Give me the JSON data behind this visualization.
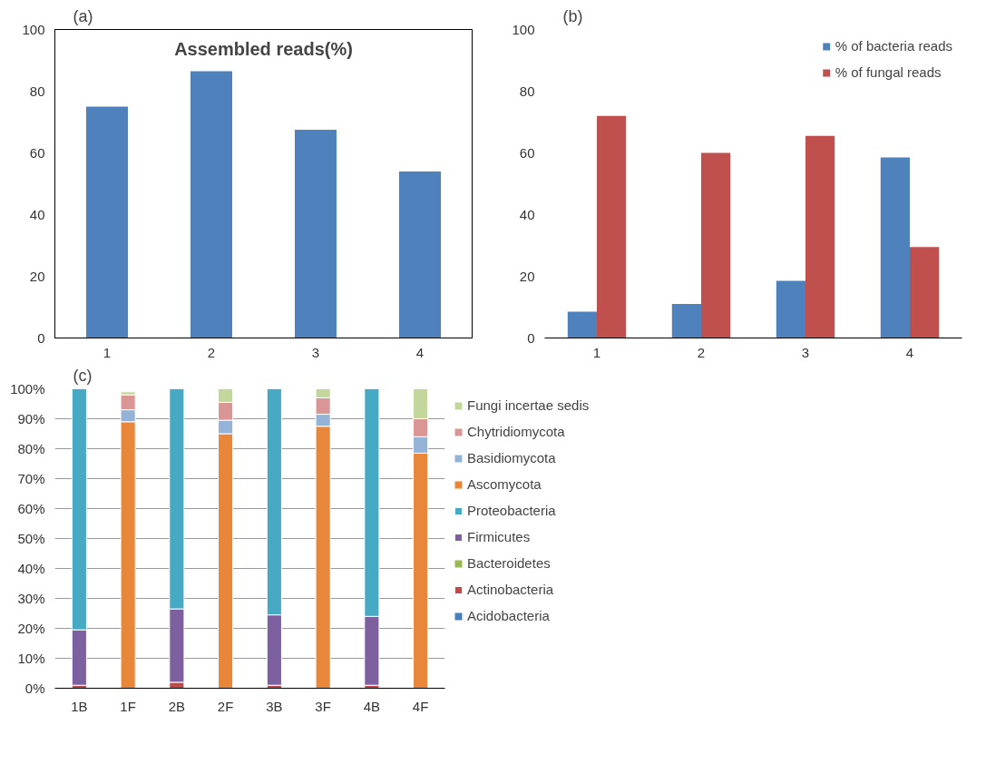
{
  "chart_data": [
    {
      "type": "bar",
      "title": "Assembled reads(%)",
      "annotations": [
        "(a)"
      ],
      "categories": [
        "1",
        "2",
        "3",
        "4"
      ],
      "values": [
        75,
        86.5,
        67.5,
        54
      ],
      "color": "#4f81bd",
      "ylim": [
        0,
        100
      ],
      "yticks": [
        0,
        20,
        40,
        60,
        80,
        100
      ],
      "grid": false
    },
    {
      "type": "bar",
      "annotations": [
        "(b)"
      ],
      "categories": [
        "1",
        "2",
        "3",
        "4"
      ],
      "series": [
        {
          "name": "% of bacteria reads",
          "color": "#4f81bd",
          "values": [
            8.5,
            11,
            18.5,
            58.5
          ]
        },
        {
          "name": "% of fungal reads",
          "color": "#c0504d",
          "values": [
            72,
            60,
            65.5,
            29.5
          ]
        }
      ],
      "ylim": [
        0,
        100
      ],
      "yticks": [
        0,
        20,
        40,
        60,
        80,
        100
      ],
      "grid": false,
      "legend": "top right"
    },
    {
      "type": "bar",
      "stacked": true,
      "annotations": [
        "(c)"
      ],
      "categories": [
        "1B",
        "1F",
        "2B",
        "2F",
        "3B",
        "3F",
        "4B",
        "4F"
      ],
      "series": [
        {
          "name": "Acidobacteria",
          "color": "#4a7ebb",
          "values": [
            0,
            0,
            0,
            0,
            0,
            0,
            0,
            0
          ]
        },
        {
          "name": "Actinobacteria",
          "color": "#be4b48",
          "values": [
            1,
            0,
            2,
            0,
            1,
            0,
            1,
            0
          ]
        },
        {
          "name": "Bacteroidetes",
          "color": "#98b954",
          "values": [
            0,
            0,
            0,
            0,
            0,
            0,
            0,
            0
          ]
        },
        {
          "name": "Firmicutes",
          "color": "#7d60a0",
          "values": [
            18.5,
            0,
            24.5,
            0,
            23.5,
            0,
            23,
            0
          ]
        },
        {
          "name": "Proteobacteria",
          "color": "#46aac5",
          "values": [
            80.5,
            0,
            73.5,
            0,
            75.5,
            0,
            76,
            0
          ]
        },
        {
          "name": "Ascomycota",
          "color": "#e8873a",
          "values": [
            0,
            89,
            0,
            85,
            0,
            87.5,
            0,
            78.5
          ]
        },
        {
          "name": "Basidiomycota",
          "color": "#95b3d7",
          "values": [
            0,
            4,
            0,
            4.5,
            0,
            4,
            0,
            5.5
          ]
        },
        {
          "name": "Chytridiomycota",
          "color": "#d99694",
          "values": [
            0,
            5,
            0,
            6,
            0,
            5.5,
            0,
            6
          ]
        },
        {
          "name": "Fungi incertae sedis",
          "color": "#c3d69b",
          "values": [
            0,
            1,
            0,
            4.5,
            0,
            3,
            0,
            10
          ]
        }
      ],
      "ylim": [
        0,
        100
      ],
      "yticks": [
        {
          "value": 0,
          "label": "0%"
        },
        {
          "value": 10,
          "label": "10%"
        },
        {
          "value": 20,
          "label": "20%"
        },
        {
          "value": 30,
          "label": "30%"
        },
        {
          "value": 40,
          "label": "40%"
        },
        {
          "value": 50,
          "label": "50%"
        },
        {
          "value": 60,
          "label": "60%"
        },
        {
          "value": 70,
          "label": "70%"
        },
        {
          "value": 80,
          "label": "80%"
        },
        {
          "value": 90,
          "label": "90%"
        },
        {
          "value": 100,
          "label": "100%"
        }
      ],
      "grid": "y",
      "legend": "right"
    }
  ]
}
